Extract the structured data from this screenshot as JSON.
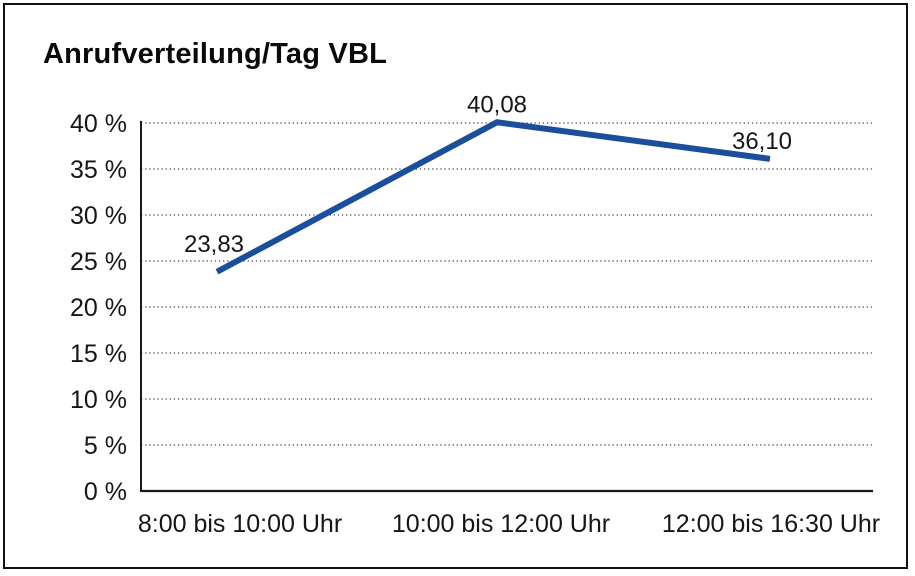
{
  "chart_data": {
    "type": "line",
    "title": "Anrufverteilung/Tag VBL",
    "categories": [
      "8:00 bis 10:00 Uhr",
      "10:00 bis 12:00 Uhr",
      "12:00 bis 16:30 Uhr"
    ],
    "values": [
      23.83,
      40.08,
      36.1
    ],
    "point_labels": [
      "23,83",
      "40,08",
      "36,10"
    ],
    "xlabel": "",
    "ylabel": "",
    "ylim": [
      0,
      40
    ],
    "ytick_step": 5,
    "ytick_labels": [
      "0 %",
      "5 %",
      "10 %",
      "15 %",
      "20 %",
      "25 %",
      "30 %",
      "35 %",
      "40 %"
    ],
    "grid": "horizontal-dotted",
    "legend": "none",
    "line_color": "#1b4e9b",
    "axis_color": "#1a1a1a",
    "grid_color": "#4a4a4a",
    "text_color": "#161616",
    "frame_border_color": "#111111",
    "background": "#ffffff"
  }
}
